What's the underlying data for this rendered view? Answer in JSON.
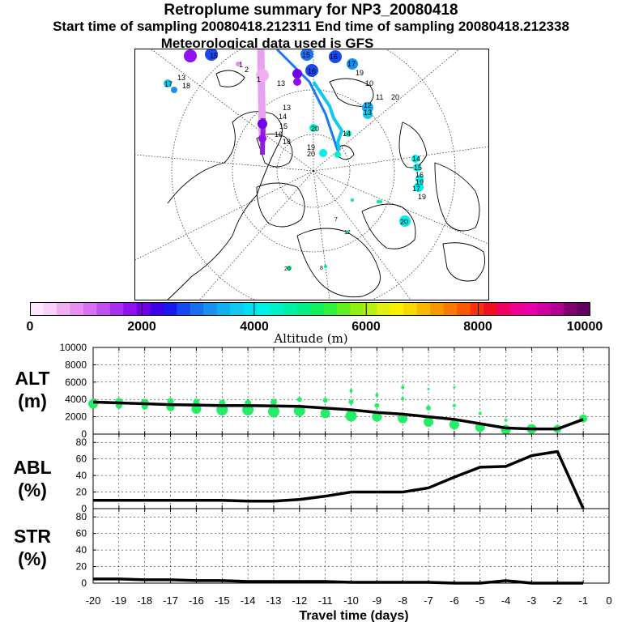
{
  "header": {
    "title": "Retroplume summary for NP3_20080418",
    "subtitle": "Start time of sampling 20080418.212311     End time of sampling 20080418.212338",
    "met": "Meteorological data used is GFS"
  },
  "colorbar": {
    "tick_labels": [
      "0",
      "2000",
      "4000",
      "6000",
      "8000",
      "10000"
    ],
    "colors": [
      "#ffe8ff",
      "#f8d0f8",
      "#f0b0f0",
      "#e890f0",
      "#d870f0",
      "#c050f0",
      "#a830f0",
      "#9010f0",
      "#7000e8",
      "#4000e8",
      "#1818f0",
      "#1848f0",
      "#1870f0",
      "#1890f0",
      "#10b0f0",
      "#10c8f0",
      "#00e0f0",
      "#00f0e8",
      "#00f0c8",
      "#00f0a8",
      "#00f088",
      "#10f060",
      "#30f040",
      "#60f020",
      "#90f010",
      "#b8f010",
      "#e0f010",
      "#f8f000",
      "#f8d800",
      "#f8b800",
      "#f89800",
      "#f87800",
      "#f85800",
      "#f83010",
      "#f01020",
      "#f00060",
      "#f00090",
      "#e800a8",
      "#d000a0",
      "#b00090",
      "#800070",
      "#600060"
    ],
    "axis_label": "Altitude (m)"
  },
  "map_labels": {
    "pink_column": [
      "2",
      "1"
    ],
    "purple_column": [
      "13",
      "14",
      "15",
      "16",
      "17",
      "18",
      "19",
      "20"
    ],
    "cyan_right": [
      "11",
      "12",
      "13",
      "14",
      "15",
      "16",
      "17",
      "18",
      "19",
      "20"
    ],
    "blue_top": [
      "15",
      "16",
      "17",
      "19",
      "10",
      "20"
    ],
    "left_cluster": [
      "13",
      "17",
      "18",
      "1"
    ],
    "green_small": [
      "7",
      "9",
      "10",
      "12",
      "8",
      "3",
      "20"
    ]
  },
  "chart_data": [
    {
      "type": "scatter+line",
      "title": "ALT\n(m)",
      "ylabel": "ALT (m)",
      "ylim": [
        0,
        10000
      ],
      "yticks": [
        0,
        2000,
        4000,
        6000,
        8000,
        10000
      ],
      "line": {
        "x": [
          -20,
          -19,
          -18,
          -17,
          -16,
          -15,
          -14,
          -13,
          -12,
          -11,
          -10,
          -9,
          -8,
          -7,
          -6,
          -5,
          -4,
          -3,
          -2,
          -1
        ],
        "y": [
          3700,
          3600,
          3500,
          3400,
          3350,
          3300,
          3300,
          3250,
          3200,
          3000,
          2800,
          2500,
          2300,
          2000,
          1700,
          1200,
          700,
          600,
          600,
          1700
        ]
      },
      "points": [
        {
          "x": -20,
          "y": 3500,
          "s": 6
        },
        {
          "x": -19,
          "y": 3700,
          "s": 5
        },
        {
          "x": -19,
          "y": 3300,
          "s": 4
        },
        {
          "x": -18,
          "y": 3600,
          "s": 5
        },
        {
          "x": -18,
          "y": 3200,
          "s": 4
        },
        {
          "x": -17,
          "y": 3800,
          "s": 4
        },
        {
          "x": -17,
          "y": 3100,
          "s": 5
        },
        {
          "x": -16,
          "y": 3700,
          "s": 4
        },
        {
          "x": -16,
          "y": 2900,
          "s": 6
        },
        {
          "x": -15,
          "y": 3600,
          "s": 4
        },
        {
          "x": -15,
          "y": 2800,
          "s": 7
        },
        {
          "x": -14,
          "y": 3600,
          "s": 4
        },
        {
          "x": -14,
          "y": 2800,
          "s": 7
        },
        {
          "x": -13,
          "y": 3700,
          "s": 4
        },
        {
          "x": -13,
          "y": 2600,
          "s": 7
        },
        {
          "x": -12,
          "y": 4000,
          "s": 3
        },
        {
          "x": -12,
          "y": 2700,
          "s": 7
        },
        {
          "x": -11,
          "y": 3900,
          "s": 3
        },
        {
          "x": -11,
          "y": 2400,
          "s": 6
        },
        {
          "x": -10,
          "y": 5000,
          "s": 2
        },
        {
          "x": -10,
          "y": 3700,
          "s": 3
        },
        {
          "x": -10,
          "y": 2100,
          "s": 7
        },
        {
          "x": -9,
          "y": 4500,
          "s": 2
        },
        {
          "x": -9,
          "y": 3300,
          "s": 3
        },
        {
          "x": -9,
          "y": 2000,
          "s": 6
        },
        {
          "x": -8,
          "y": 5400,
          "s": 2
        },
        {
          "x": -8,
          "y": 4100,
          "s": 2
        },
        {
          "x": -8,
          "y": 1800,
          "s": 6
        },
        {
          "x": -7,
          "y": 5200,
          "s": 1.5
        },
        {
          "x": -7,
          "y": 3000,
          "s": 3
        },
        {
          "x": -7,
          "y": 1400,
          "s": 6
        },
        {
          "x": -6,
          "y": 5400,
          "s": 1.5
        },
        {
          "x": -6,
          "y": 3300,
          "s": 2
        },
        {
          "x": -6,
          "y": 1100,
          "s": 6
        },
        {
          "x": -5,
          "y": 2400,
          "s": 2
        },
        {
          "x": -5,
          "y": 800,
          "s": 6
        },
        {
          "x": -4,
          "y": 1600,
          "s": 2
        },
        {
          "x": -4,
          "y": 500,
          "s": 6
        },
        {
          "x": -3,
          "y": 600,
          "s": 6
        },
        {
          "x": -2,
          "y": 600,
          "s": 5
        },
        {
          "x": -1,
          "y": 1800,
          "s": 5
        }
      ]
    },
    {
      "type": "line",
      "title": "ABL\n(%)",
      "ylabel": "ABL (%)",
      "ylim": [
        0,
        90
      ],
      "yticks": [
        0,
        20,
        40,
        60,
        80
      ],
      "x": [
        -20,
        -19,
        -18,
        -17,
        -16,
        -15,
        -14,
        -13,
        -12,
        -11,
        -10,
        -9,
        -8,
        -7,
        -6,
        -5,
        -4,
        -3,
        -2,
        -1
      ],
      "y": [
        10,
        10,
        10,
        10,
        10,
        10,
        9,
        9,
        11,
        15,
        20,
        20,
        20,
        25,
        38,
        50,
        51,
        64,
        69,
        0
      ]
    },
    {
      "type": "line",
      "title": "STR\n(%)",
      "ylabel": "STR (%)",
      "ylim": [
        0,
        90
      ],
      "yticks": [
        0,
        20,
        40,
        60,
        80
      ],
      "x": [
        -20,
        -19,
        -18,
        -17,
        -16,
        -15,
        -14,
        -13,
        -12,
        -11,
        -10,
        -9,
        -8,
        -7,
        -6,
        -5,
        -4,
        -3,
        -2,
        -1
      ],
      "y": [
        5,
        5,
        4,
        4,
        3,
        3,
        2,
        2,
        2,
        2,
        1,
        1,
        1,
        1,
        0,
        0,
        3,
        0,
        0,
        0
      ]
    }
  ],
  "xaxis": {
    "xlim": [
      -20,
      0
    ],
    "tick_labels": [
      "-20",
      "-19",
      "-18",
      "-17",
      "-16",
      "-15",
      "-14",
      "-13",
      "-12",
      "-11",
      "-10",
      "-9",
      "-8",
      "-7",
      "-6",
      "-5",
      "-4",
      "-3",
      "-2",
      "-1",
      "0"
    ],
    "label": "Travel time (days)"
  }
}
